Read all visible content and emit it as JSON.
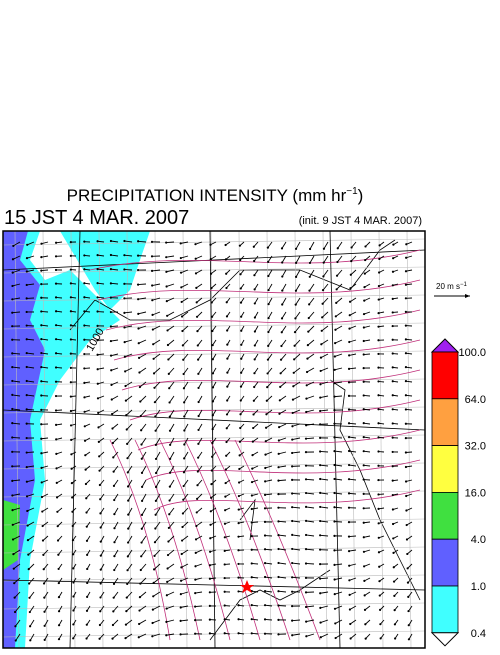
{
  "header": {
    "title": {
      "text": "PRECIPITATION INTENSITY (mm hr",
      "sup": "−1",
      "end": ")"
    },
    "time": "15 JST 4 MAR. 2007",
    "init": "(init. 9 JST 4 MAR. 2007)"
  },
  "vector_key": {
    "text": "20 m s",
    "sup": "−1"
  },
  "contour_label": "1000",
  "colorbar": {
    "top_color": "#a020f0",
    "bottom_color": "#ffffff",
    "levels": [
      {
        "label": "100.0",
        "color": "#ff0000"
      },
      {
        "label": "64.0",
        "color": "#ffa040"
      },
      {
        "label": "32.0",
        "color": "#ffff40"
      },
      {
        "label": "16.0",
        "color": "#40e040"
      },
      {
        "label": "4.0",
        "color": "#6060ff"
      },
      {
        "label": "1.0",
        "color": "#40ffff"
      },
      {
        "label": "0.4",
        "color": null
      }
    ]
  }
}
